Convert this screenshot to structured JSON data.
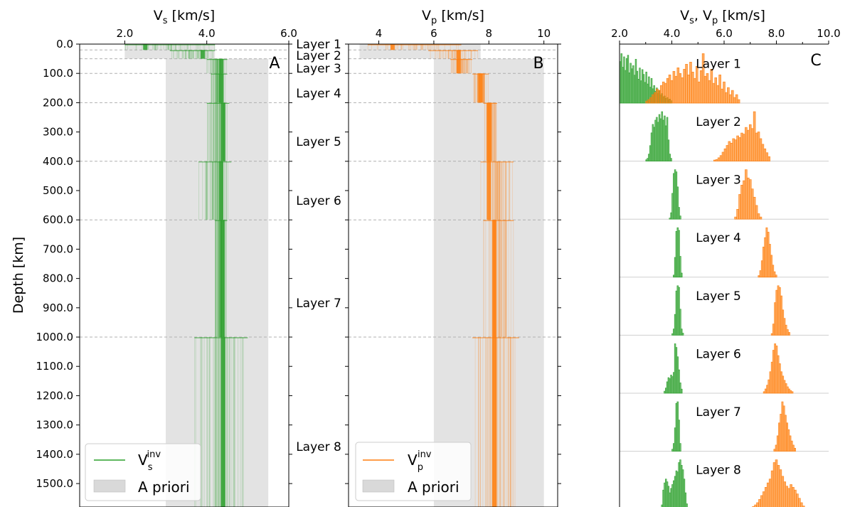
{
  "colors": {
    "vs": "#2ca02c",
    "vp": "#ff7f0e",
    "prior": "#d9d9d9",
    "grid": "#b0b0b0"
  },
  "chart_data": [
    {
      "id": "A",
      "type": "line",
      "panel_label": "A",
      "xlabel_main": "V",
      "xlabel_sub": "s",
      "xlabel_unit": " [km/s]",
      "ylabel": "Depth [km]",
      "xlim": [
        0.9,
        6.0
      ],
      "ylim": [
        1580,
        0
      ],
      "xticks": [
        "2.0",
        "4.0",
        "6.0"
      ],
      "xtick_values": [
        2.0,
        4.0,
        6.0
      ],
      "yticks": [
        "0.0",
        "100.0",
        "200.0",
        "300.0",
        "400.0",
        "500.0",
        "600.0",
        "700.0",
        "800.0",
        "900.0",
        "1000.0",
        "1100.0",
        "1200.0",
        "1300.0",
        "1400.0",
        "1500.0"
      ],
      "ytick_values": [
        0,
        100,
        200,
        300,
        400,
        500,
        600,
        700,
        800,
        900,
        1000,
        1100,
        1200,
        1300,
        1400,
        1500
      ],
      "layer_boundaries": [
        20,
        50,
        100,
        200,
        400,
        600,
        1000
      ],
      "a_priori": [
        {
          "top": 0,
          "bottom": 50,
          "min": 2.0,
          "max": 4.2
        },
        {
          "top": 50,
          "bottom": 1580,
          "min": 3.0,
          "max": 5.5
        }
      ],
      "profile_bands": [
        {
          "top": 0,
          "bottom": 20,
          "min": 2.0,
          "max": 4.2,
          "center": 2.5
        },
        {
          "top": 20,
          "bottom": 50,
          "min": 3.1,
          "max": 4.2,
          "center": 3.9
        },
        {
          "top": 50,
          "bottom": 100,
          "min": 4.0,
          "max": 4.5,
          "center": 4.35
        },
        {
          "top": 100,
          "bottom": 200,
          "min": 4.1,
          "max": 4.5,
          "center": 4.35
        },
        {
          "top": 200,
          "bottom": 400,
          "min": 4.0,
          "max": 4.55,
          "center": 4.4
        },
        {
          "top": 400,
          "bottom": 600,
          "min": 3.8,
          "max": 4.6,
          "center": 4.35
        },
        {
          "top": 600,
          "bottom": 1000,
          "min": 4.2,
          "max": 4.5,
          "center": 4.38
        },
        {
          "top": 1000,
          "bottom": 1580,
          "min": 3.7,
          "max": 5.0,
          "center": 4.4
        }
      ],
      "legend": [
        {
          "label_main": "V",
          "label_sub": "s",
          "label_sup": "inv",
          "kind": "line"
        },
        {
          "label": "A priori",
          "kind": "patch"
        }
      ]
    },
    {
      "id": "B",
      "type": "line",
      "panel_label": "B",
      "xlabel_main": "V",
      "xlabel_sub": "p",
      "xlabel_unit": " [km/s]",
      "xlim": [
        2.9,
        10.5
      ],
      "ylim": [
        1580,
        0
      ],
      "xticks": [
        "4",
        "6",
        "8",
        "10"
      ],
      "xtick_values": [
        4,
        6,
        8,
        10
      ],
      "layer_boundaries": [
        20,
        50,
        100,
        200,
        400,
        600,
        1000
      ],
      "a_priori": [
        {
          "top": 0,
          "bottom": 50,
          "min": 3.3,
          "max": 7.7
        },
        {
          "top": 50,
          "bottom": 1580,
          "min": 6.0,
          "max": 10.0
        }
      ],
      "profile_bands": [
        {
          "top": 0,
          "bottom": 20,
          "min": 3.6,
          "max": 7.0,
          "center": 4.5
        },
        {
          "top": 20,
          "bottom": 50,
          "min": 5.8,
          "max": 7.6,
          "center": 6.9
        },
        {
          "top": 50,
          "bottom": 100,
          "min": 6.6,
          "max": 7.4,
          "center": 6.9
        },
        {
          "top": 100,
          "bottom": 200,
          "min": 7.4,
          "max": 8.0,
          "center": 7.7
        },
        {
          "top": 200,
          "bottom": 400,
          "min": 7.8,
          "max": 8.3,
          "center": 8.0
        },
        {
          "top": 400,
          "bottom": 600,
          "min": 7.7,
          "max": 8.9,
          "center": 8.0
        },
        {
          "top": 600,
          "bottom": 1000,
          "min": 7.8,
          "max": 8.9,
          "center": 8.2
        },
        {
          "top": 1000,
          "bottom": 1580,
          "min": 7.4,
          "max": 9.1,
          "center": 8.2
        }
      ],
      "legend": [
        {
          "label_main": "V",
          "label_sub": "p",
          "label_sup": "inv",
          "kind": "line"
        },
        {
          "label": "A priori",
          "kind": "patch"
        }
      ]
    },
    {
      "id": "C",
      "type": "bar",
      "panel_label": "C",
      "xlabel_main": "V",
      "xlabel_sub": "s",
      "xlabel_mid": ", V",
      "xlabel_sub2": "p",
      "xlabel_unit": " [km/s]",
      "xlim": [
        2.0,
        10.0
      ],
      "xticks": [
        "2.0",
        "4.0",
        "6.0",
        "8.0",
        "10.0"
      ],
      "xtick_values": [
        2.0,
        4.0,
        6.0,
        8.0,
        10.0
      ],
      "layers": [
        {
          "name": "Layer 1",
          "vs": {
            "start": 2.0,
            "width": 0.05,
            "counts": [
              52,
              62,
              45,
              58,
              41,
              56,
              60,
              38,
              50,
              43,
              47,
              35,
              55,
              40,
              30,
              44,
              28,
              42,
              36,
              26,
              39,
              24,
              33,
              20,
              31,
              18,
              22,
              15,
              19,
              12,
              16,
              10,
              12,
              8,
              9,
              6,
              7,
              4,
              5,
              3
            ]
          },
          "vp": {
            "start": 3.0,
            "width": 0.08,
            "counts": [
              3,
              5,
              8,
              12,
              15,
              20,
              18,
              25,
              30,
              28,
              35,
              40,
              32,
              45,
              38,
              50,
              42,
              36,
              48,
              55,
              40,
              58,
              44,
              35,
              52,
              30,
              46,
              70,
              38,
              42,
              32,
              48,
              28,
              36,
              25,
              40,
              20,
              30,
              15,
              22,
              12,
              18,
              8,
              12,
              5
            ]
          }
        },
        {
          "name": "Layer 2",
          "vs": {
            "start": 3.0,
            "width": 0.05,
            "counts": [
              2,
              4,
              10,
              22,
              40,
              52,
              48,
              58,
              62,
              55,
              66,
              60,
              70,
              58,
              64,
              50,
              62,
              30,
              10,
              4
            ]
          },
          "vp": {
            "start": 5.6,
            "width": 0.08,
            "counts": [
              2,
              3,
              6,
              10,
              16,
              22,
              28,
              35,
              32,
              40,
              38,
              45,
              42,
              50,
              48,
              60,
              55,
              65,
              58,
              88,
              50,
              52,
              40,
              30,
              22,
              15,
              8
            ]
          }
        },
        {
          "name": "Layer 3",
          "vs": {
            "start": 3.9,
            "width": 0.05,
            "counts": [
              2,
              12,
              48,
              85,
              92,
              88,
              60,
              22,
              6
            ]
          },
          "vp": {
            "start": 6.4,
            "width": 0.08,
            "counts": [
              4,
              18,
              45,
              62,
              70,
              90,
              75,
              72,
              55,
              40,
              25,
              10,
              4
            ]
          }
        },
        {
          "name": "Layer 4",
          "vs": {
            "start": 4.05,
            "width": 0.05,
            "counts": [
              4,
              38,
              88,
              95,
              90,
              40,
              8
            ]
          },
          "vp": {
            "start": 7.3,
            "width": 0.06,
            "counts": [
              3,
              12,
              30,
              55,
              72,
              90,
              82,
              60,
              40,
              22,
              10,
              4
            ]
          }
        },
        {
          "name": "Layer 5",
          "vs": {
            "start": 4.0,
            "width": 0.05,
            "counts": [
              3,
              12,
              40,
              85,
              95,
              92,
              50,
              12,
              4
            ]
          },
          "vp": {
            "start": 7.8,
            "width": 0.06,
            "counts": [
              3,
              20,
              58,
              80,
              88,
              85,
              70,
              45,
              30,
              18,
              10,
              5
            ]
          }
        },
        {
          "name": "Layer 6",
          "vs": {
            "start": 3.7,
            "width": 0.05,
            "counts": [
              4,
              10,
              22,
              30,
              28,
              35,
              32,
              40,
              95,
              88,
              70,
              45,
              20,
              8
            ]
          },
          "vp": {
            "start": 7.5,
            "width": 0.06,
            "counts": [
              3,
              8,
              15,
              25,
              40,
              58,
              80,
              92,
              88,
              70,
              55,
              40,
              32,
              24,
              18,
              12,
              8,
              5,
              3
            ]
          }
        },
        {
          "name": "Layer 7",
          "vs": {
            "start": 4.0,
            "width": 0.05,
            "counts": [
              4,
              15,
              45,
              92,
              95,
              60,
              15
            ]
          },
          "vp": {
            "start": 7.9,
            "width": 0.06,
            "counts": [
              4,
              12,
              30,
              55,
              72,
              96,
              88,
              70,
              55,
              42,
              30,
              20,
              12,
              6
            ]
          }
        },
        {
          "name": "Layer 8",
          "vs": {
            "start": 3.6,
            "width": 0.05,
            "counts": [
              8,
              35,
              48,
              55,
              50,
              42,
              30,
              38,
              45,
              52,
              60,
              70,
              68,
              85,
              90,
              80,
              72,
              55,
              30,
              10
            ]
          },
          "vp": {
            "start": 7.0,
            "width": 0.08,
            "counts": [
              3,
              5,
              8,
              12,
              18,
              25,
              32,
              40,
              48,
              55,
              70,
              85,
              90,
              80,
              72,
              60,
              50,
              42,
              38,
              45,
              40,
              35,
              28,
              20,
              12,
              6
            ]
          }
        }
      ]
    }
  ],
  "layer_labels": [
    "Layer 1",
    "Layer 2",
    "Layer 3",
    "Layer 4",
    "Layer 5",
    "Layer 6",
    "Layer 7",
    "Layer 8"
  ],
  "layer_label_depths": [
    0,
    20,
    50,
    150,
    300,
    500,
    800,
    1380
  ]
}
